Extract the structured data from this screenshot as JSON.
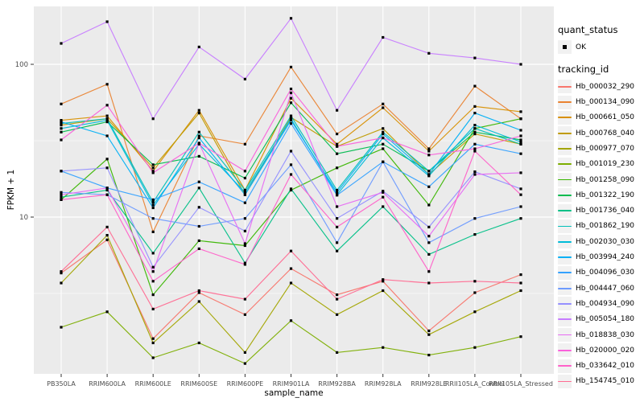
{
  "figure": {
    "background": "#FFFFFF",
    "panel_background": "#EBEBEB",
    "grid_color": "#FFFFFF",
    "tick_label_color": "#4D4D4D",
    "axis_title_color": "#000000",
    "marker_color": "#000000",
    "legend_key_fill": "#F1F1F1"
  },
  "chart_data": {
    "type": "line",
    "title": "",
    "xlabel": "sample_name",
    "ylabel": "FPKM + 1",
    "y_scale": "log10",
    "ylim": [
      0.95,
      240
    ],
    "grid": true,
    "legend_position": "right",
    "marker": {
      "shape": "square",
      "color": "#000000",
      "size": 3.2
    },
    "y_ticks": [
      {
        "value": 100,
        "label": "100"
      },
      {
        "value": 10,
        "label": "10"
      }
    ],
    "y_minor": [
      31.623,
      3.1623
    ],
    "categories": [
      "PB350LA",
      "RRIM600LA",
      "RRIM600LE",
      "RRIM600SE",
      "RRIM600PE",
      "RRIM901LA",
      "RRIM928BA",
      "RRIM928LA",
      "RRIM928LE",
      "RRII105LA_Control",
      "RRII105LA_Stressed"
    ],
    "legend": {
      "quant_status_title": "quant_status",
      "quant_status_items": [
        {
          "label": "OK"
        }
      ],
      "tracking_title": "tracking_id"
    },
    "series": [
      {
        "name": "Hb_000032_290",
        "color": "#F8766D",
        "values": [
          4.3,
          7.1,
          1.6,
          3.2,
          2.3,
          4.6,
          3.1,
          3.8,
          1.8,
          3.2,
          4.2
        ]
      },
      {
        "name": "Hb_000134_090",
        "color": "#EA8331",
        "values": [
          55,
          74,
          8,
          34,
          30,
          96,
          35,
          55,
          28,
          72,
          44
        ]
      },
      {
        "name": "Hb_000661_050",
        "color": "#D89000",
        "values": [
          43,
          46,
          20,
          50,
          15,
          60,
          30,
          52,
          27,
          53,
          49
        ]
      },
      {
        "name": "Hb_000768_040",
        "color": "#C09B00",
        "values": [
          40,
          44,
          21,
          48,
          14,
          45,
          29,
          38,
          19,
          35,
          30
        ]
      },
      {
        "name": "Hb_000977_070",
        "color": "#A3A500",
        "values": [
          3.7,
          7.6,
          1.5,
          2.8,
          1.3,
          3.7,
          2.3,
          3.3,
          1.7,
          2.4,
          3.3
        ]
      },
      {
        "name": "Hb_001019_230",
        "color": "#7CAE00",
        "values": [
          1.9,
          2.4,
          1.2,
          1.5,
          1.1,
          2.1,
          1.3,
          1.4,
          1.25,
          1.4,
          1.65
        ]
      },
      {
        "name": "Hb_001258_090",
        "color": "#39B600",
        "values": [
          13,
          24,
          3.1,
          7,
          6.5,
          15,
          21,
          28,
          12,
          38,
          44
        ]
      },
      {
        "name": "Hb_001322_190",
        "color": "#00BB4E",
        "values": [
          36,
          42,
          22,
          25,
          18,
          56,
          26,
          30,
          20,
          36,
          32
        ]
      },
      {
        "name": "Hb_001736_040",
        "color": "#00C087",
        "values": [
          13.5,
          15,
          5.8,
          15.5,
          5,
          15.3,
          6,
          11.7,
          5.7,
          7.7,
          9.8
        ]
      },
      {
        "name": "Hb_001862_190",
        "color": "#00C0B8",
        "values": [
          41,
          44,
          12.5,
          36,
          15,
          46,
          15,
          36,
          20,
          38,
          30
        ]
      },
      {
        "name": "Hb_002030_030",
        "color": "#00BCD8",
        "values": [
          38,
          43,
          12,
          30,
          14.5,
          44,
          14,
          33,
          18.6,
          40,
          31
        ]
      },
      {
        "name": "Hb_003994_240",
        "color": "#00B0F6",
        "values": [
          42,
          34,
          11.5,
          33,
          14,
          43,
          14.5,
          35,
          19,
          48,
          37
        ]
      },
      {
        "name": "Hb_004096_030",
        "color": "#35A2FF",
        "values": [
          20,
          15.5,
          13,
          17,
          12.4,
          41,
          13.9,
          23,
          15.8,
          30,
          26
        ]
      },
      {
        "name": "Hb_004447_060",
        "color": "#6E9BFF",
        "values": [
          14.5,
          14,
          9.8,
          8.7,
          9.8,
          22,
          6.8,
          23,
          6.8,
          9.8,
          11.7
        ]
      },
      {
        "name": "Hb_004934_090",
        "color": "#9590FF",
        "values": [
          20,
          21,
          4.7,
          11.6,
          8.1,
          27,
          9.8,
          14.8,
          8.6,
          19.8,
          15.3
        ]
      },
      {
        "name": "Hb_005054_180",
        "color": "#C77CFF",
        "values": [
          137,
          190,
          44,
          130,
          80,
          200,
          50,
          150,
          118,
          110,
          100
        ]
      },
      {
        "name": "Hb_018838_030",
        "color": "#E76BF3",
        "values": [
          14,
          15.5,
          4.4,
          30.5,
          6.7,
          65,
          11.7,
          14.5,
          7.5,
          19,
          19.5
        ]
      },
      {
        "name": "Hb_020000_020",
        "color": "#FA62DB",
        "values": [
          32,
          54,
          19.5,
          30.5,
          20,
          69,
          29,
          33,
          25.5,
          28,
          34
        ]
      },
      {
        "name": "Hb_033642_010",
        "color": "#FF61C9",
        "values": [
          13,
          14,
          3.8,
          6.2,
          4.9,
          19,
          8.6,
          13.5,
          4.4,
          27,
          14
        ]
      },
      {
        "name": "Hb_154745_010",
        "color": "#FF6C92",
        "values": [
          4.4,
          8.6,
          2.5,
          3.3,
          2.9,
          6,
          2.9,
          3.9,
          3.7,
          3.8,
          3.7
        ]
      }
    ]
  }
}
